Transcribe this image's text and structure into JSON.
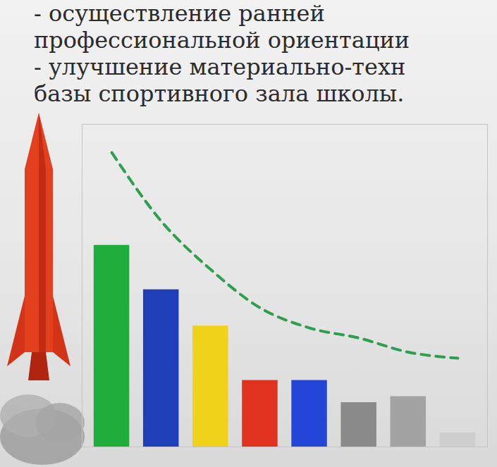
{
  "text": {
    "lines": [
      "- осуществление ранней",
      "профессиональной ориентации",
      "- улучшение материально-техн",
      "базы спортивного зала школы."
    ]
  },
  "chart_data": {
    "type": "bar",
    "categories": [
      null,
      null,
      null,
      null,
      null,
      null,
      null,
      null
    ],
    "ylim": [
      0,
      160
    ],
    "tick_labels": false,
    "grid": false,
    "series": [
      {
        "type": "bar",
        "values": [
          100,
          78,
          60,
          33,
          33,
          22,
          25,
          7
        ],
        "colors": [
          "#1fae3c",
          "#1f3fb8",
          "#f0d21a",
          "#e0321e",
          "#2446d8",
          "#8a8a8a",
          "#a3a3a3",
          "#cfcfcf"
        ]
      },
      {
        "type": "line",
        "line_style": "dashed",
        "color": "#2e9e4f",
        "values": [
          146,
          112,
          88,
          69,
          59,
          54,
          47,
          44
        ]
      }
    ]
  }
}
